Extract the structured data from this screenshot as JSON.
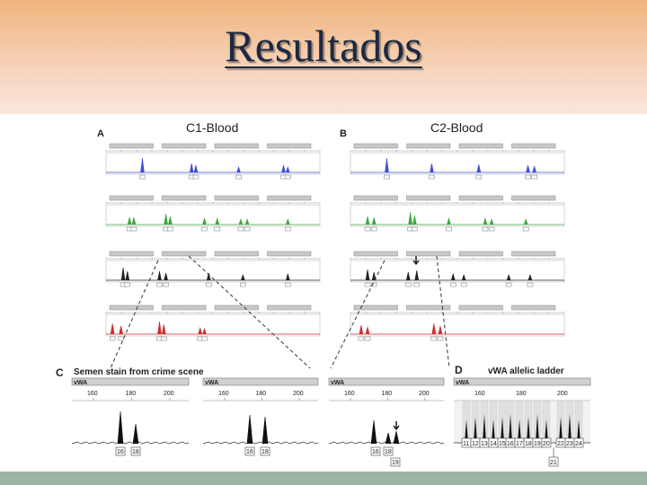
{
  "slide": {
    "title": "Resultados",
    "colors": {
      "header_top": "#f0b47c",
      "header_bottom": "#fbe6dd",
      "footer": "#9cb5a2"
    }
  },
  "figure": {
    "panel_a": {
      "letter": "A",
      "title": "C1-Blood"
    },
    "panel_b": {
      "letter": "B",
      "title": "C2-Blood"
    },
    "panel_c": {
      "letter": "C",
      "title": "Semen stain from crime scene",
      "locus": "vWA",
      "ticks": [
        "160",
        "180",
        "200"
      ],
      "alleles_1": [
        "16",
        "18"
      ],
      "alleles_2": [
        "16",
        "18"
      ],
      "alleles_3": [
        "16",
        "18"
      ],
      "extra_allele": "19"
    },
    "panel_d": {
      "letter": "D",
      "title": "vWA allelic ladder",
      "locus": "vWA",
      "ticks": [
        "160",
        "180",
        "200"
      ],
      "alleles": [
        "11",
        "12",
        "13",
        "14",
        "15",
        "16",
        "17",
        "18",
        "19",
        "20",
        "22",
        "23",
        "24"
      ],
      "extra_allele": "21"
    },
    "dye_colors": {
      "blue": "#3f4fd8",
      "green": "#3da83d",
      "black": "#222222",
      "red": "#d02c2c"
    }
  }
}
